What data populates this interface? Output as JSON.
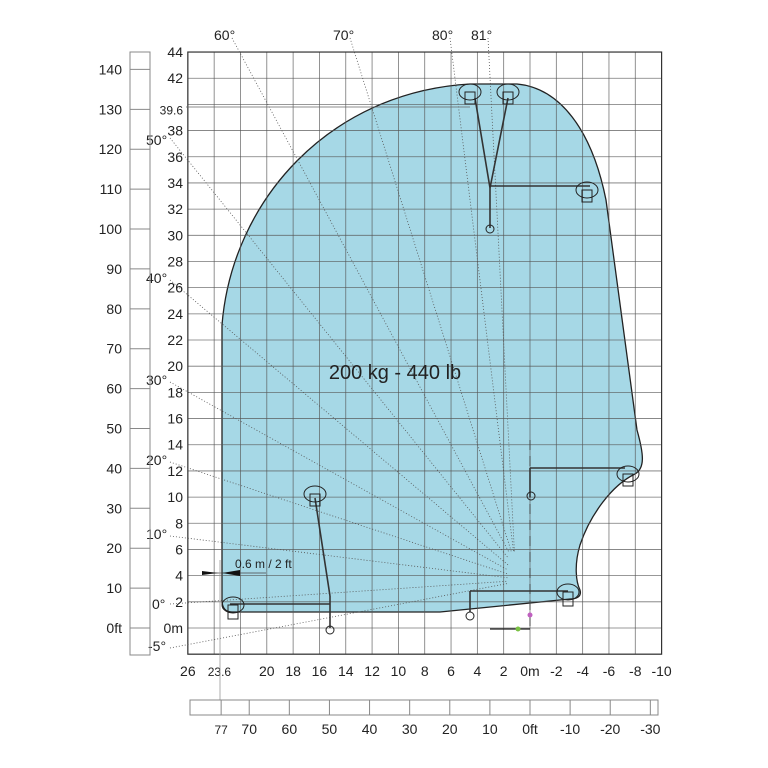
{
  "diagram": {
    "type": "working-range",
    "load_label": "200 kg - 440 lb",
    "offset_note": "0.6 m / 2 ft",
    "envelope_color": "#a6d8e6",
    "grid_color": "#555555",
    "x_axis_m": {
      "range": [
        26,
        -10
      ],
      "grid_step": 2,
      "tick_labels": [
        {
          "v": 26,
          "t": "26"
        },
        {
          "v": 23.6,
          "t": "23.6"
        },
        {
          "v": 20,
          "t": "20"
        },
        {
          "v": 18,
          "t": "18"
        },
        {
          "v": 16,
          "t": "16"
        },
        {
          "v": 14,
          "t": "14"
        },
        {
          "v": 12,
          "t": "12"
        },
        {
          "v": 10,
          "t": "10"
        },
        {
          "v": 8,
          "t": "8"
        },
        {
          "v": 6,
          "t": "6"
        },
        {
          "v": 4,
          "t": "4"
        },
        {
          "v": 2,
          "t": "2"
        },
        {
          "v": 0,
          "t": "0m"
        },
        {
          "v": -2,
          "t": "-2"
        },
        {
          "v": -4,
          "t": "-4"
        },
        {
          "v": -6,
          "t": "-6"
        },
        {
          "v": -8,
          "t": "-8"
        },
        {
          "v": -10,
          "t": "-10"
        }
      ]
    },
    "y_axis_m": {
      "range": [
        -2,
        44
      ],
      "grid_step": 2,
      "tick_labels": [
        {
          "v": 44,
          "t": "44"
        },
        {
          "v": 42,
          "t": "42"
        },
        {
          "v": 39.6,
          "t": "39.6"
        },
        {
          "v": 38,
          "t": "38"
        },
        {
          "v": 36,
          "t": "36"
        },
        {
          "v": 34,
          "t": "34"
        },
        {
          "v": 32,
          "t": "32"
        },
        {
          "v": 30,
          "t": "30"
        },
        {
          "v": 28,
          "t": "28"
        },
        {
          "v": 26,
          "t": "26"
        },
        {
          "v": 24,
          "t": "24"
        },
        {
          "v": 22,
          "t": "22"
        },
        {
          "v": 20,
          "t": "20"
        },
        {
          "v": 18,
          "t": "18"
        },
        {
          "v": 16,
          "t": "16"
        },
        {
          "v": 14,
          "t": "14"
        },
        {
          "v": 12,
          "t": "12"
        },
        {
          "v": 10,
          "t": "10"
        },
        {
          "v": 8,
          "t": "8"
        },
        {
          "v": 6,
          "t": "6"
        },
        {
          "v": 4,
          "t": "4"
        },
        {
          "v": 2,
          "t": "2"
        },
        {
          "v": 0,
          "t": "0m"
        }
      ]
    },
    "y_axis_ft": {
      "tick_labels": [
        {
          "v": 140,
          "t": "140"
        },
        {
          "v": 130,
          "t": "130"
        },
        {
          "v": 120,
          "t": "120"
        },
        {
          "v": 110,
          "t": "110"
        },
        {
          "v": 100,
          "t": "100"
        },
        {
          "v": 90,
          "t": "90"
        },
        {
          "v": 80,
          "t": "80"
        },
        {
          "v": 70,
          "t": "70"
        },
        {
          "v": 60,
          "t": "60"
        },
        {
          "v": 50,
          "t": "50"
        },
        {
          "v": 40,
          "t": "40"
        },
        {
          "v": 30,
          "t": "30"
        },
        {
          "v": 20,
          "t": "20"
        },
        {
          "v": 10,
          "t": "10"
        },
        {
          "v": 0,
          "t": "0ft"
        }
      ]
    },
    "x_axis_ft": {
      "tick_labels": [
        {
          "v": 77,
          "t": "77"
        },
        {
          "v": 70,
          "t": "70"
        },
        {
          "v": 60,
          "t": "60"
        },
        {
          "v": 50,
          "t": "50"
        },
        {
          "v": 40,
          "t": "40"
        },
        {
          "v": 30,
          "t": "30"
        },
        {
          "v": 20,
          "t": "20"
        },
        {
          "v": 10,
          "t": "10"
        },
        {
          "v": 0,
          "t": "0ft"
        },
        {
          "v": -10,
          "t": "-10"
        },
        {
          "v": -20,
          "t": "-20"
        },
        {
          "v": -30,
          "t": "-30"
        }
      ]
    },
    "angle_labels": [
      "60°",
      "70°",
      "80°",
      "81°",
      "50°",
      "40°",
      "30°",
      "20°",
      "10°",
      "0°",
      "-5°"
    ]
  }
}
